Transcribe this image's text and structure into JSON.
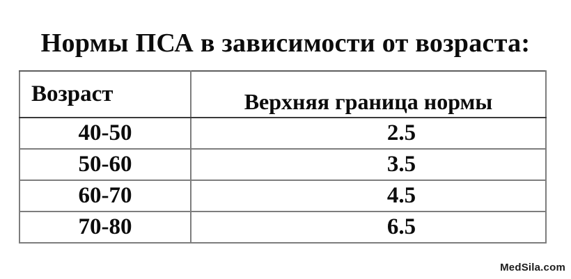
{
  "page": {
    "title": "Нормы ПСА в зависимости от возраста:",
    "watermark": "MedSila.com"
  },
  "table": {
    "columns": [
      {
        "label": "Возраст"
      },
      {
        "label": "Верхняя граница нормы"
      }
    ],
    "rows": [
      {
        "age": "40-50",
        "limit": "2.5"
      },
      {
        "age": "50-60",
        "limit": "3.5"
      },
      {
        "age": "60-70",
        "limit": "4.5"
      },
      {
        "age": "70-80",
        "limit": "6.5"
      }
    ]
  },
  "colors": {
    "background": "#ffffff",
    "text": "#0c0c0c",
    "grid_border": "#7d7d7d",
    "header_rule": "#3a3a3a",
    "watermark_text": "#1c1c1c"
  }
}
